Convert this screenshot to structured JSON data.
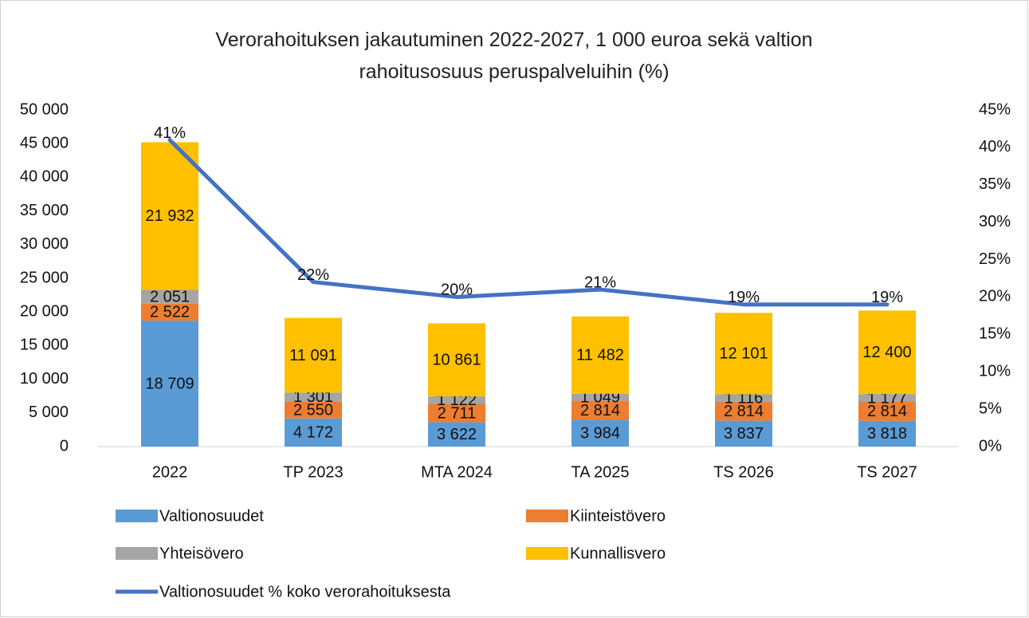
{
  "chart_data": {
    "type": "bar",
    "stacked": true,
    "title": "Verorahoituksen jakautuminen 2022-2027, 1 000 euroa sekä valtion rahoitusosuus peruspalveluihin (%)",
    "categories": [
      "2022",
      "TP 2023",
      "MTA 2024",
      "TA 2025",
      "TS 2026",
      "TS 2027"
    ],
    "series": [
      {
        "name": "Valtionosuudet",
        "color": "#5b9bd5",
        "values": [
          18709,
          4172,
          3622,
          3984,
          3837,
          3818
        ],
        "value_labels": [
          "18 709",
          "4 172",
          "3 622",
          "3 984",
          "3 837",
          "3 818"
        ]
      },
      {
        "name": "Kiinteistövero",
        "color": "#ed7d31",
        "values": [
          2522,
          2550,
          2711,
          2814,
          2814,
          2814
        ],
        "value_labels": [
          "2 522",
          "2 550",
          "2 711",
          "2 814",
          "2 814",
          "2 814"
        ]
      },
      {
        "name": "Yhteisövero",
        "color": "#a5a5a5",
        "values": [
          2051,
          1301,
          1122,
          1049,
          1116,
          1177
        ],
        "value_labels": [
          "2 051",
          "1 301",
          "1 122",
          "1 049",
          "1 116",
          "1 177"
        ]
      },
      {
        "name": "Kunnallisvero",
        "color": "#ffc000",
        "values": [
          21932,
          11091,
          10861,
          11482,
          12101,
          12400
        ],
        "value_labels": [
          "21 932",
          "11 091",
          "10 861",
          "11 482",
          "12 101",
          "12 400"
        ]
      },
      {
        "name": "Valtionosuudet % koko verorahoituksesta",
        "color": "#4472c4",
        "type": "line",
        "axis": "y2",
        "values": [
          41,
          22,
          20,
          21,
          19,
          19
        ],
        "value_labels": [
          "41%",
          "22%",
          "20%",
          "21%",
          "19%",
          "19%"
        ]
      }
    ],
    "ylim": [
      0,
      50000
    ],
    "yticks": [
      0,
      {
        "value": 5000,
        "label": "5 000"
      },
      {
        "value": 10000,
        "label": "10 000"
      },
      {
        "value": 15000,
        "label": "15 000"
      },
      {
        "value": 20000,
        "label": "20 000"
      },
      {
        "value": 25000,
        "label": "25 000"
      },
      {
        "value": 30000,
        "label": "30 000"
      },
      {
        "value": 35000,
        "label": "35 000"
      },
      {
        "value": 40000,
        "label": "40 000"
      },
      {
        "value": 45000,
        "label": "45 000"
      },
      {
        "value": 50000,
        "label": "50 000"
      }
    ],
    "y2lim": [
      0,
      45
    ],
    "y2ticks": [
      {
        "value": 0,
        "label": "0%"
      },
      {
        "value": 5,
        "label": "5%"
      },
      {
        "value": 10,
        "label": "10%"
      },
      {
        "value": 15,
        "label": "15%"
      },
      {
        "value": 20,
        "label": "20%"
      },
      {
        "value": 25,
        "label": "25%"
      },
      {
        "value": 30,
        "label": "30%"
      },
      {
        "value": 35,
        "label": "35%"
      },
      {
        "value": 40,
        "label": "40%"
      },
      {
        "value": 45,
        "label": "45%"
      }
    ],
    "grid": false,
    "legend": "bottom"
  }
}
